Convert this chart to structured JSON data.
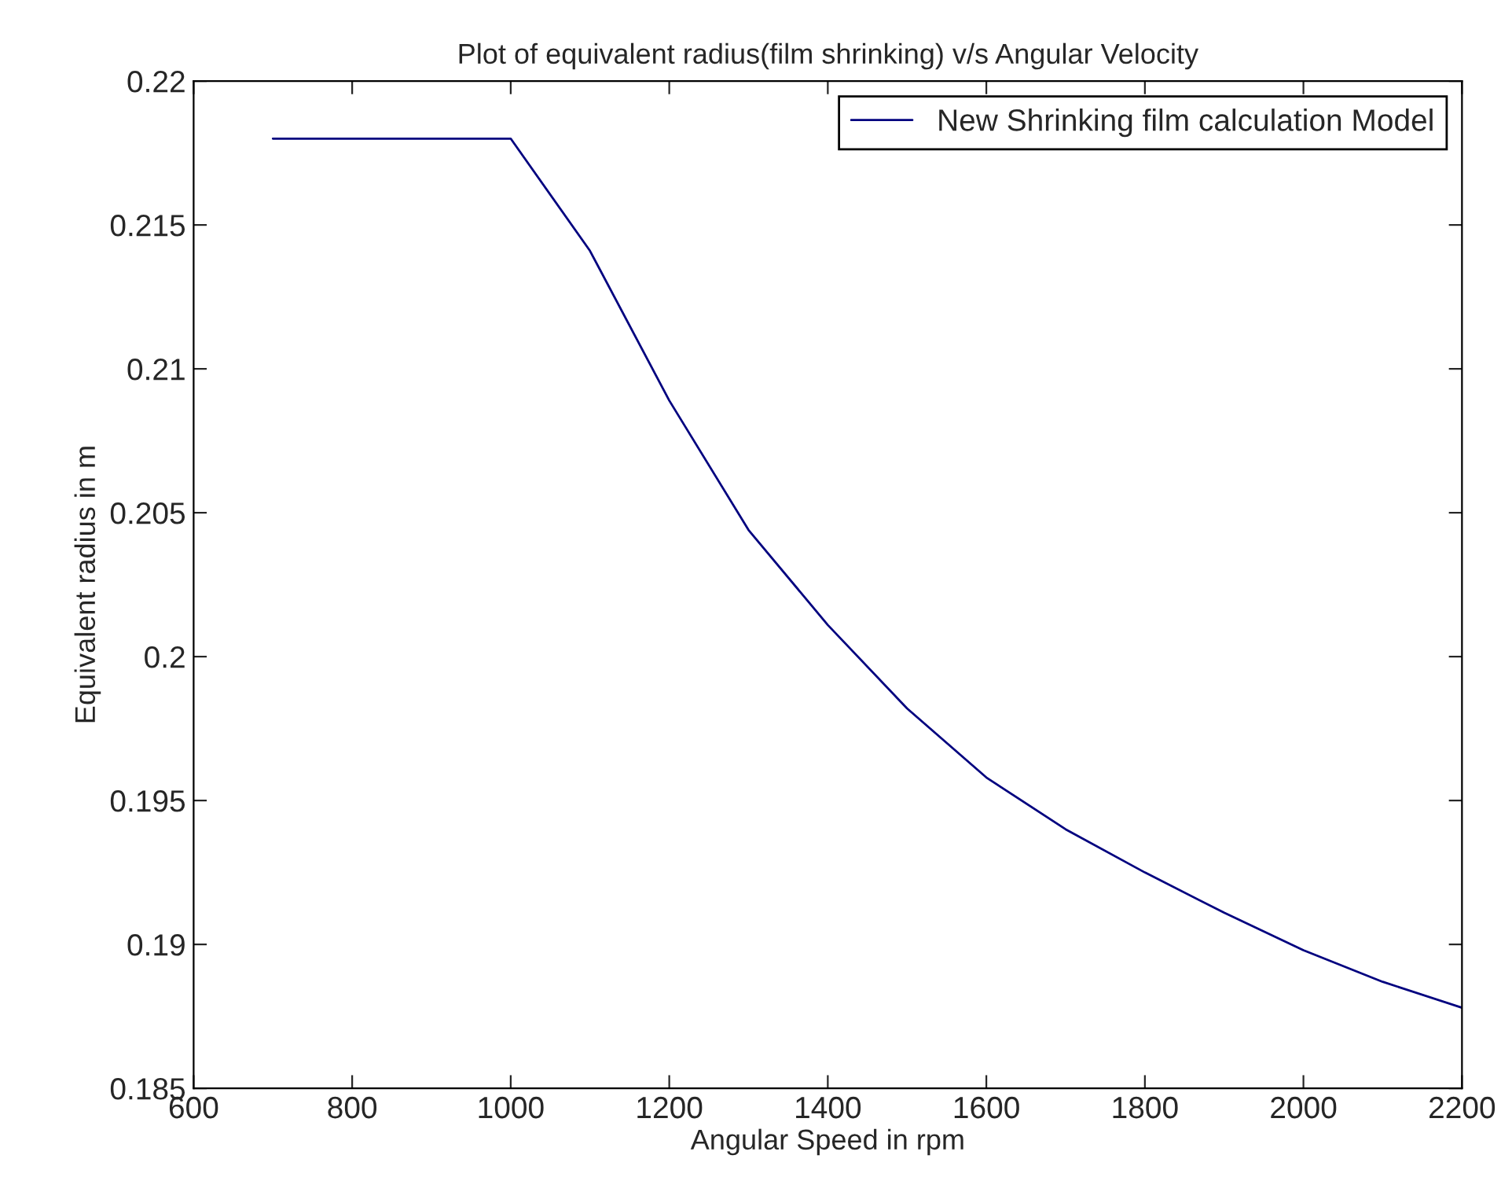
{
  "chart_data": {
    "type": "line",
    "title": "Plot of equivalent radius(film shrinking) v/s Angular Velocity",
    "xlabel": "Angular Speed in rpm",
    "ylabel": "Equivalent radius in m",
    "x": [
      700,
      800,
      900,
      1000,
      1100,
      1200,
      1300,
      1400,
      1500,
      1600,
      1700,
      1800,
      1900,
      2000,
      2100,
      2200
    ],
    "series": [
      {
        "name": "New Shrinking film calculation Model",
        "color": "#00007f",
        "values": [
          0.218,
          0.218,
          0.218,
          0.218,
          0.2141,
          0.2089,
          0.2044,
          0.2011,
          0.1982,
          0.1958,
          0.194,
          0.1925,
          0.1911,
          0.1898,
          0.1887,
          0.1878
        ]
      }
    ],
    "xlim": [
      600,
      2200
    ],
    "xticks": [
      600,
      800,
      1000,
      1200,
      1400,
      1600,
      1800,
      2000,
      2200
    ],
    "ylim": [
      0.185,
      0.22
    ],
    "yticks": [
      0.185,
      0.19,
      0.195,
      0.2,
      0.205,
      0.21,
      0.215,
      0.22
    ],
    "grid": false,
    "legend": "top right",
    "marker": "none",
    "line_style": "solid"
  }
}
